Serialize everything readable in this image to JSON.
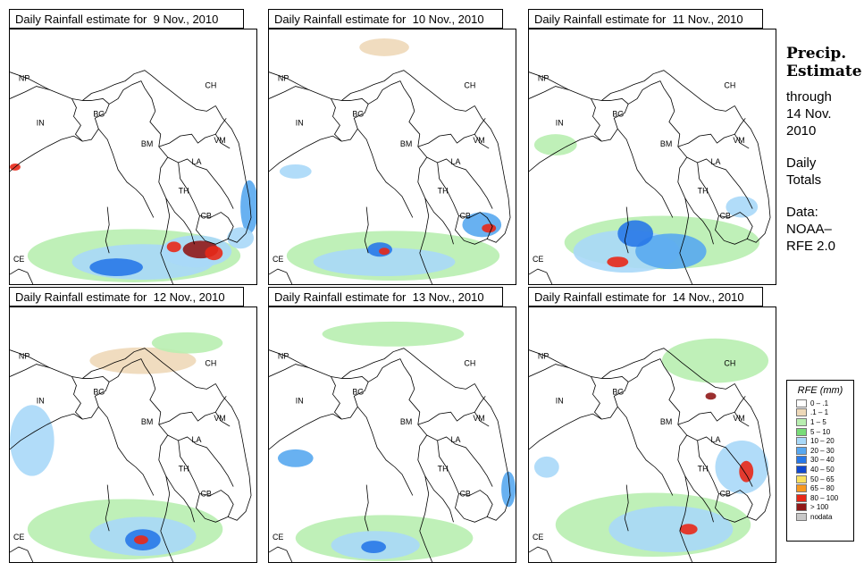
{
  "panels": [
    {
      "title": "Daily Rainfall estimate for  9 Nov., 2010"
    },
    {
      "title": "Daily Rainfall estimate for  10 Nov., 2010"
    },
    {
      "title": "Daily Rainfall estimate for  11 Nov., 2010"
    },
    {
      "title": "Daily Rainfall estimate for  12 Nov., 2010"
    },
    {
      "title": "Daily Rainfall estimate for  13 Nov., 2010"
    },
    {
      "title": "Daily Rainfall estimate for  14 Nov., 2010"
    }
  ],
  "country_labels": [
    "NP",
    "CH",
    "IN",
    "BG",
    "BM",
    "VM",
    "LA",
    "TH",
    "CB",
    "CE"
  ],
  "side": {
    "heading_line1": "Precip.",
    "heading_line2": "Estimate",
    "through": "through",
    "date_line1": "14 Nov.",
    "date_line2": "2010",
    "daily": "Daily",
    "totals": "Totals",
    "data": "Data:",
    "source": "NOAA–",
    "version": "RFE 2.0"
  },
  "legend": {
    "title": "RFE (mm)",
    "items": [
      {
        "label": "0 – .1",
        "color": "#ffffff"
      },
      {
        "label": ".1 – 1",
        "color": "#eed8b8"
      },
      {
        "label": "1 – 5",
        "color": "#b8eeb0"
      },
      {
        "label": "5 – 10",
        "color": "#78dc78"
      },
      {
        "label": "10 – 20",
        "color": "#a8d8f8"
      },
      {
        "label": "20 – 30",
        "color": "#58a8f0"
      },
      {
        "label": "30 – 40",
        "color": "#2878e8"
      },
      {
        "label": "40 – 50",
        "color": "#1048d0"
      },
      {
        "label": "50 – 65",
        "color": "#f8e060"
      },
      {
        "label": "65 – 80",
        "color": "#f89820"
      },
      {
        "label": "80 – 100",
        "color": "#e82818"
      },
      {
        "label": "> 100",
        "color": "#901818"
      },
      {
        "label": "nodata",
        "color": "#c8c8c8"
      }
    ]
  }
}
